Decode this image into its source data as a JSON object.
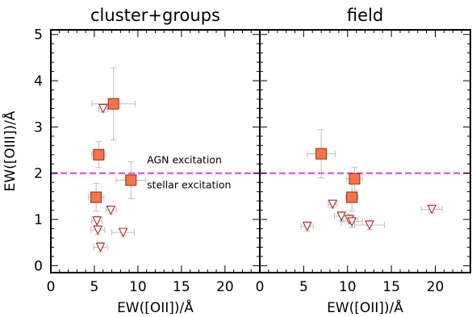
{
  "chart_data": [
    {
      "type": "scatter",
      "title": "cluster+groups",
      "xlabel": "EW([OII])/Å",
      "ylabel": "EW([OIII])/Å",
      "xlim": [
        0,
        24
      ],
      "ylim": [
        -0.15,
        5.1
      ],
      "xticks": [
        "0",
        "5",
        "10",
        "15",
        "20"
      ],
      "yticks": [
        "0",
        "1",
        "2",
        "3",
        "4",
        "5"
      ],
      "threshold": {
        "y": 2.0,
        "color": "#e040e0",
        "label_above": "AGN excitation",
        "label_below": "stellar excitation"
      },
      "detections": [
        {
          "x": 7.2,
          "y": 3.5,
          "xerr": 2.5,
          "yerr": 0.78
        },
        {
          "x": 5.5,
          "y": 2.4,
          "xerr": 0.8,
          "yerr": 0.28
        },
        {
          "x": 9.2,
          "y": 1.85,
          "xerr": 1.7,
          "yerr": 0.4
        },
        {
          "x": 5.2,
          "y": 1.48,
          "xerr": 0.9,
          "yerr": 0.3
        }
      ],
      "upper_limits": [
        {
          "x": 6.0,
          "y": 3.4,
          "xerr": 0.5,
          "yerr": 0.08
        },
        {
          "x": 5.3,
          "y": 0.97,
          "xerr": 0.6,
          "yerr": 0.1
        },
        {
          "x": 6.9,
          "y": 1.2,
          "xerr": 0.6,
          "yerr": 0.08
        },
        {
          "x": 5.4,
          "y": 0.77,
          "xerr": 0.8,
          "yerr": 0.1
        },
        {
          "x": 8.3,
          "y": 0.72,
          "xerr": 1.3,
          "yerr": 0.08
        },
        {
          "x": 5.7,
          "y": 0.4,
          "xerr": 0.8,
          "yerr": 0.1
        }
      ]
    },
    {
      "type": "scatter",
      "title": "field",
      "xlabel": "EW([OII])/Å",
      "ylabel": "",
      "xlim": [
        0,
        24
      ],
      "ylim": [
        -0.15,
        5.1
      ],
      "xticks": [
        "0",
        "5",
        "10",
        "15",
        "20"
      ],
      "yticks": [],
      "threshold": {
        "y": 2.0,
        "color": "#e040e0"
      },
      "detections": [
        {
          "x": 7.0,
          "y": 2.42,
          "xerr": 1.6,
          "yerr": 0.52
        },
        {
          "x": 10.8,
          "y": 1.88,
          "xerr": 0.9,
          "yerr": 0.25
        },
        {
          "x": 10.5,
          "y": 1.48,
          "xerr": 0.7,
          "yerr": 0.3
        }
      ],
      "upper_limits": [
        {
          "x": 8.3,
          "y": 1.33,
          "xerr": 0.5,
          "yerr": 0.08
        },
        {
          "x": 9.3,
          "y": 1.07,
          "xerr": 0.8,
          "yerr": 0.1
        },
        {
          "x": 10.2,
          "y": 1.0,
          "xerr": 1.0,
          "yerr": 0.1
        },
        {
          "x": 10.5,
          "y": 0.95,
          "xerr": 1.2,
          "yerr": 0.12
        },
        {
          "x": 12.5,
          "y": 0.88,
          "xerr": 1.7,
          "yerr": 0.1
        },
        {
          "x": 5.4,
          "y": 0.85,
          "xerr": 0.7,
          "yerr": 0.1
        },
        {
          "x": 19.6,
          "y": 1.22,
          "xerr": 1.2,
          "yerr": 0.08
        }
      ]
    }
  ],
  "style": {
    "detection_fill": "#f7744a",
    "detection_stroke": "#8a2a10",
    "limit_fill": "#ffffff",
    "limit_stroke": "#b02828",
    "errorbar_color": "#bdbdbd"
  }
}
